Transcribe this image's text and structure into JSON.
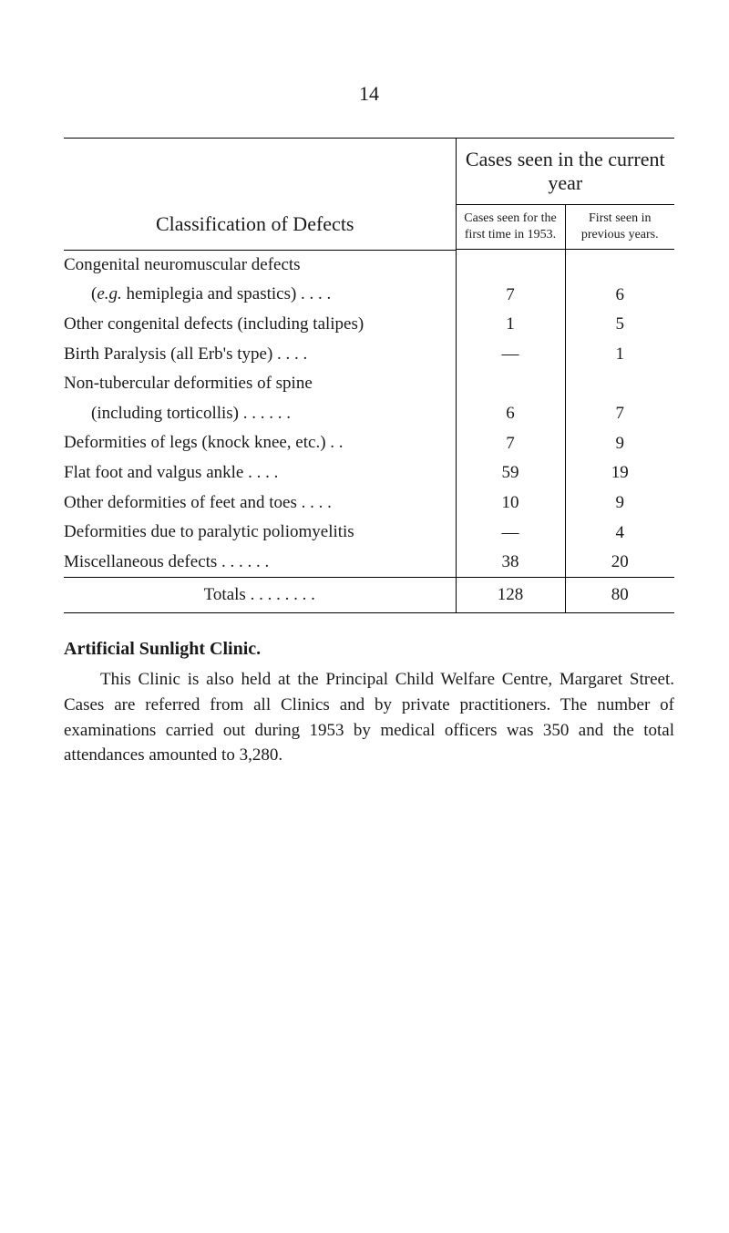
{
  "page_number": "14",
  "table": {
    "classification_header": "Classification of Defects",
    "cases_seen_header": "Cases seen in the current year",
    "sub_headers": {
      "first_time": "Cases seen for the first time in 1953.",
      "previous": "First seen in previous years."
    },
    "rows": [
      {
        "label": "Congenital neuromuscular defects",
        "indent": false,
        "val1": "",
        "val2": ""
      },
      {
        "label_html": "(<span class=\"em\">e.g.</span> hemiplegia and spastics)    . .            . .",
        "indent": true,
        "val1": "7",
        "val2": "6"
      },
      {
        "label": "Other congenital defects (including talipes)",
        "indent": false,
        "val1": "1",
        "val2": "5"
      },
      {
        "label": "Birth Paralysis (all Erb's type)        . .            . .",
        "indent": false,
        "val1": "—",
        "val2": "1"
      },
      {
        "label": "Non-tubercular deformities of spine",
        "indent": false,
        "val1": "",
        "val2": ""
      },
      {
        "label": "(including torticollis)           . .         . .            . .",
        "indent": true,
        "val1": "6",
        "val2": "7"
      },
      {
        "label": "Deformities of legs (knock knee, etc.)       . .",
        "indent": false,
        "val1": "7",
        "val2": "9"
      },
      {
        "label": "Flat foot and valgus ankle                . .            . .",
        "indent": false,
        "val1": "59",
        "val2": "19"
      },
      {
        "label": "Other deformities of feet and toes . .          . .",
        "indent": false,
        "val1": "10",
        "val2": "9"
      },
      {
        "label": "Deformities due to paralytic poliomyelitis",
        "indent": false,
        "val1": "—",
        "val2": "4"
      },
      {
        "label": "Miscellaneous defects          . .         . .            . .",
        "indent": false,
        "val1": "38",
        "val2": "20"
      }
    ],
    "totals": {
      "label": "Totals           . .         . .          . .            . .",
      "val1": "128",
      "val2": "80"
    }
  },
  "section": {
    "heading": "Artificial Sunlight Clinic.",
    "body": "This Clinic is also held at the Principal Child Welfare Centre, Margaret Street. Cases are referred from all Clinics and by private practitioners. The number of examinations carried out during 1953 by medical officers was 350 and the total attendances amounted to 3,280."
  }
}
